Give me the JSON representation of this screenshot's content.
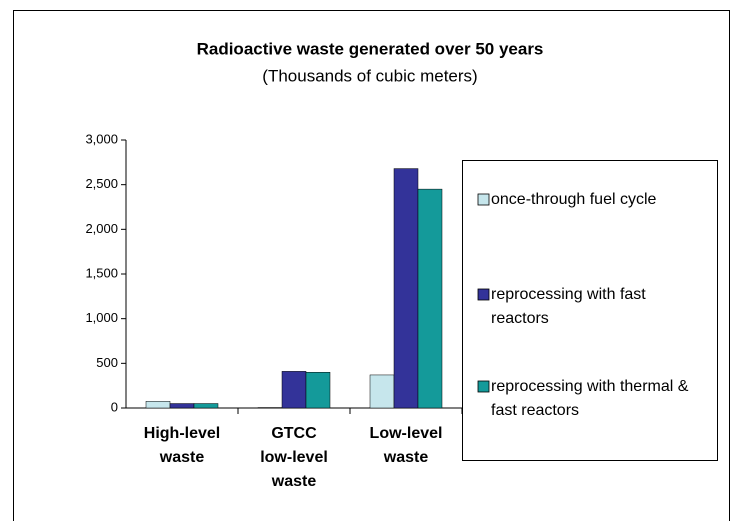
{
  "chart_data": {
    "type": "bar",
    "title": "Radioactive waste generated over 50 years",
    "subtitle": "(Thousands of cubic meters)",
    "categories": [
      "High-level waste",
      "GTCC low-level waste",
      "Low-level waste"
    ],
    "series": [
      {
        "name": "once-through fuel cycle",
        "color": "#c6e6ec",
        "values": [
          75,
          5,
          370
        ]
      },
      {
        "name": "reprocessing with fast reactors",
        "color": "#333399",
        "values": [
          50,
          410,
          2680
        ]
      },
      {
        "name": "reprocessing with thermal & fast reactors",
        "color": "#149a9a",
        "values": [
          50,
          400,
          2450
        ]
      }
    ],
    "ylim": [
      0,
      3000
    ],
    "yticks": [
      0,
      500,
      {
        "value": 1000,
        "label": "1,000"
      },
      {
        "value": 1500,
        "label": "1,500"
      },
      {
        "value": 2000,
        "label": "2,000"
      },
      {
        "value": 2500,
        "label": "2,500"
      },
      {
        "value": 3000,
        "label": "3,000"
      }
    ],
    "legend": "right"
  }
}
